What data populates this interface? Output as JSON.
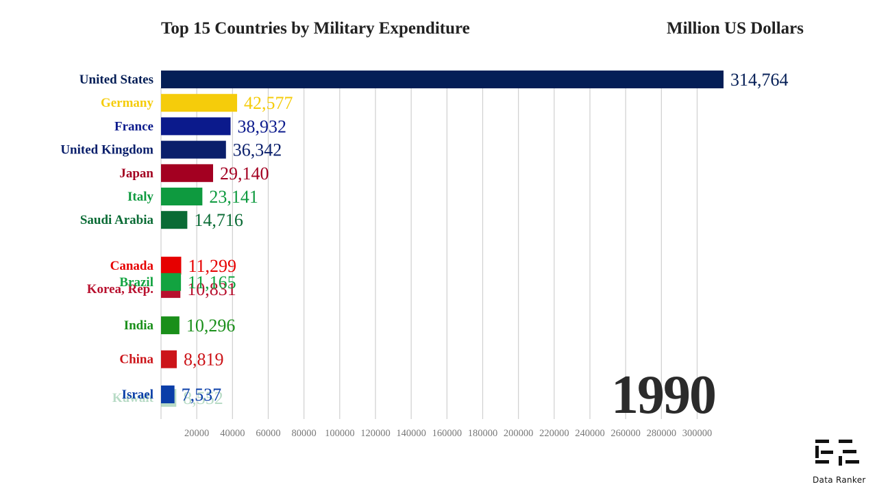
{
  "header": {
    "title": "Top 15 Countries by Military Expenditure",
    "unit": "Million US Dollars"
  },
  "year": "1990",
  "brand": {
    "name": "Data Ranker",
    "icon": "data-ranker-logo-icon"
  },
  "chart_data": {
    "type": "bar",
    "orientation": "horizontal",
    "title": "Top 15 Countries by Military Expenditure",
    "unit_label": "Million US Dollars",
    "period": "1990",
    "xlim": [
      0,
      314764
    ],
    "grid": true,
    "xticks": [
      20000,
      40000,
      60000,
      80000,
      100000,
      120000,
      140000,
      160000,
      180000,
      200000,
      220000,
      240000,
      260000,
      280000,
      300000
    ],
    "bars": [
      {
        "name": "United States",
        "value": 314764,
        "label": "314,764",
        "color": "#041e56",
        "slot": 0,
        "opacity": 1
      },
      {
        "name": "Germany",
        "value": 42577,
        "label": "42,577",
        "color": "#f5cc0b",
        "slot": 1,
        "opacity": 1
      },
      {
        "name": "France",
        "value": 38932,
        "label": "38,932",
        "color": "#0b1a8c",
        "slot": 2,
        "opacity": 1
      },
      {
        "name": "United Kingdom",
        "value": 36342,
        "label": "36,342",
        "color": "#0a1f6b",
        "slot": 3,
        "opacity": 1
      },
      {
        "name": "Japan",
        "value": 29140,
        "label": "29,140",
        "color": "#a30021",
        "slot": 4,
        "opacity": 1
      },
      {
        "name": "Italy",
        "value": 23141,
        "label": "23,141",
        "color": "#0e9a3f",
        "slot": 5,
        "opacity": 1
      },
      {
        "name": "Saudi Arabia",
        "value": 14716,
        "label": "14,716",
        "color": "#0a6b35",
        "slot": 6,
        "opacity": 1
      },
      {
        "name": "Korea, Rep.",
        "value": 10831,
        "label": "10,831",
        "color": "#b8102e",
        "slot": 8.95,
        "opacity": 1
      },
      {
        "name": "Canada",
        "value": 11299,
        "label": "11,299",
        "color": "#e60000",
        "slot": 7.95,
        "opacity": 1
      },
      {
        "name": "Brazil",
        "value": 11165,
        "label": "11,165",
        "color": "#12a340",
        "slot": 8.65,
        "opacity": 1
      },
      {
        "name": "India",
        "value": 10296,
        "label": "10,296",
        "color": "#1a8f1a",
        "slot": 10.5,
        "opacity": 1
      },
      {
        "name": "China",
        "value": 8819,
        "label": "8,819",
        "color": "#cc1419",
        "slot": 11.95,
        "opacity": 1
      },
      {
        "name": "Kuwait",
        "value": 8552,
        "label": "8,552",
        "color": "#7fbf98",
        "slot": 13.6,
        "opacity": 0.55
      },
      {
        "name": "Israel",
        "value": 7537,
        "label": "7,537",
        "color": "#0a3ea8",
        "slot": 13.45,
        "opacity": 1
      }
    ]
  }
}
